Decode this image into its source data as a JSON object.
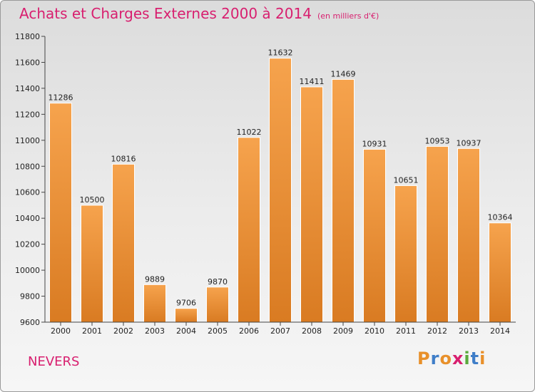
{
  "header": {
    "title": "Achats et Charges Externes 2000 à 2014",
    "unit_note": "(en milliers d'€)"
  },
  "footer": {
    "city": "NEVERS",
    "logo": "Proxiti"
  },
  "colors": {
    "title": "#d81f6f",
    "bar_light": "#f6a34d",
    "bar_dark": "#d97b22",
    "logo_letters": [
      "#e8902a",
      "#3f7ec8",
      "#e8902a",
      "#d81f6f",
      "#5aaa3c",
      "#3f7ec8",
      "#e8902a"
    ]
  },
  "chart_data": {
    "type": "bar",
    "title": "Achats et Charges Externes 2000 à 2014",
    "subtitle": "(en milliers d'€)",
    "xlabel": "",
    "ylabel": "",
    "categories": [
      "2000",
      "2001",
      "2002",
      "2003",
      "2004",
      "2005",
      "2006",
      "2007",
      "2008",
      "2009",
      "2010",
      "2011",
      "2012",
      "2013",
      "2014"
    ],
    "values": [
      11286,
      10500,
      10816,
      9889,
      9706,
      9870,
      11022,
      11632,
      11411,
      11469,
      10931,
      10651,
      10953,
      10937,
      10364
    ],
    "ylim": [
      9600,
      11800
    ],
    "yticks": [
      9600,
      9800,
      10000,
      10200,
      10400,
      10600,
      10800,
      11000,
      11200,
      11400,
      11600,
      11800
    ],
    "grid": false,
    "legend": "none"
  }
}
